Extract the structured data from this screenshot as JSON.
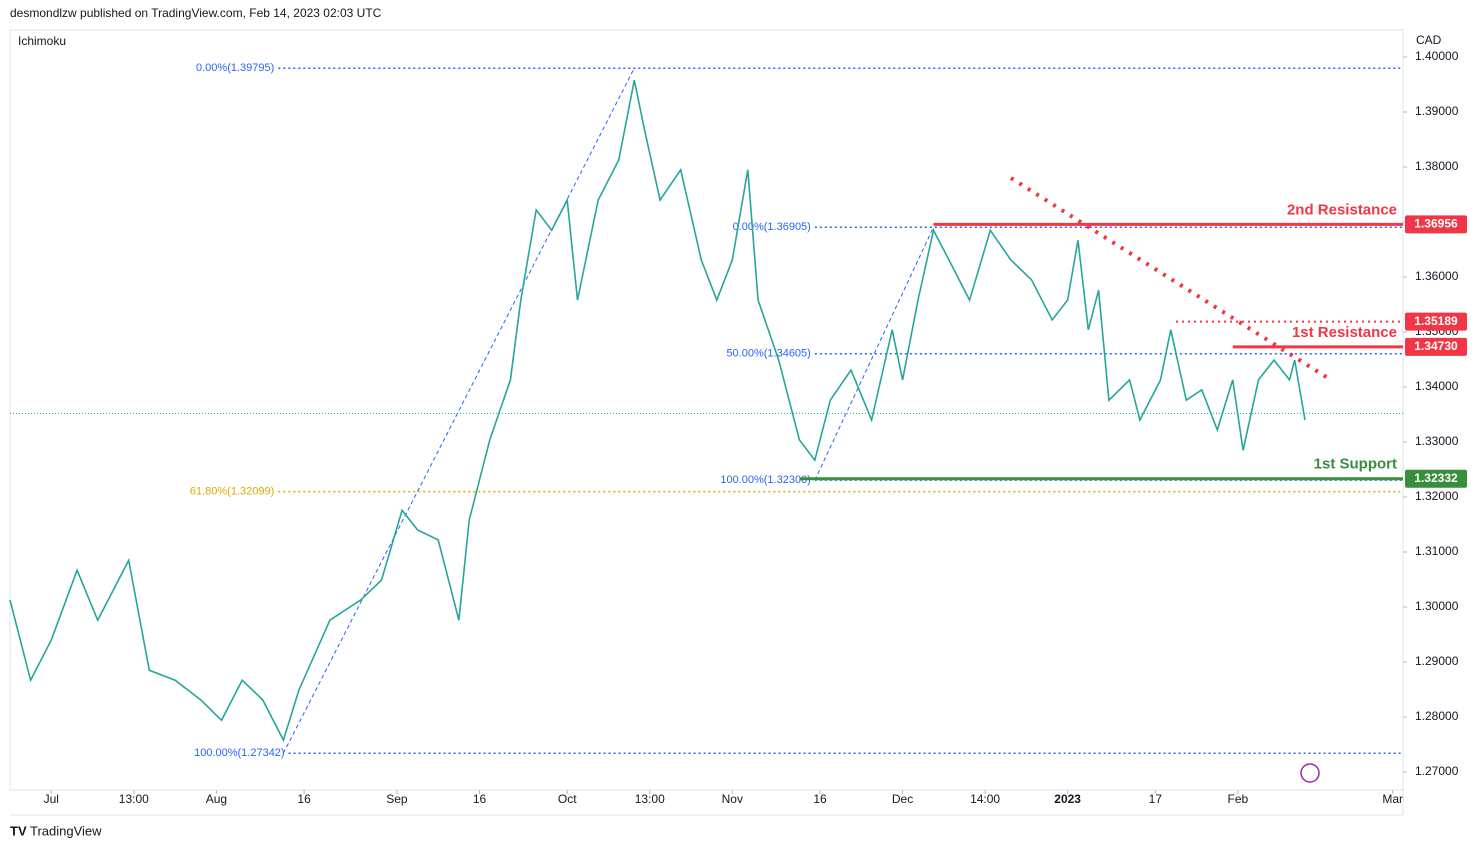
{
  "chart_data": {
    "type": "line",
    "title": "desmondlzw published on TradingView.com, Feb 14, 2023 02:03 UTC",
    "indicator": "Ichimoku",
    "y_axis_label": "CAD",
    "brand": "TradingView",
    "x": [
      0,
      4,
      8,
      13,
      17,
      23,
      27,
      32,
      37,
      41,
      45,
      49,
      53,
      56,
      62,
      68,
      72,
      76,
      79,
      83,
      87,
      89,
      93,
      97,
      99,
      102,
      105,
      108,
      110,
      114,
      118,
      121,
      123,
      126,
      130,
      134,
      137,
      140,
      143,
      145,
      149,
      153,
      156,
      159,
      163,
      167,
      171,
      173,
      176,
      179,
      182,
      186,
      190,
      194,
      198,
      202,
      205,
      207,
      209,
      211,
      213,
      217,
      219,
      223,
      225,
      228,
      231,
      234,
      237,
      239,
      242,
      245,
      248,
      249,
      251
    ],
    "values": [
      1.3013,
      1.2867,
      1.294,
      1.3067,
      1.2976,
      1.3085,
      1.2885,
      1.2867,
      1.2831,
      1.2794,
      1.2867,
      1.2831,
      1.2758,
      1.2849,
      1.2976,
      1.3013,
      1.3049,
      1.3176,
      1.314,
      1.3122,
      1.2976,
      1.3158,
      1.3304,
      1.3413,
      1.3558,
      1.3722,
      1.3685,
      1.374,
      1.3558,
      1.374,
      1.3813,
      1.3958,
      1.3867,
      1.374,
      1.3795,
      1.3631,
      1.3558,
      1.3631,
      1.3795,
      1.3558,
      1.3449,
      1.3304,
      1.3267,
      1.3376,
      1.3431,
      1.334,
      1.3504,
      1.3413,
      1.3558,
      1.3685,
      1.3631,
      1.3558,
      1.3685,
      1.3631,
      1.3595,
      1.3522,
      1.3558,
      1.3667,
      1.3504,
      1.3576,
      1.3376,
      1.3413,
      1.334,
      1.3413,
      1.3504,
      1.3376,
      1.3395,
      1.3322,
      1.3413,
      1.3285,
      1.3413,
      1.3449,
      1.3413,
      1.3449,
      1.334
    ],
    "color": "#26a69a",
    "last_price": 1.3352,
    "xlim": [
      0,
      270
    ],
    "ylim": [
      1.26673,
      1.40491
    ],
    "yticks": [
      {
        "value": 1.27,
        "label": "1.27000"
      },
      {
        "value": 1.28,
        "label": "1.28000"
      },
      {
        "value": 1.29,
        "label": "1.29000"
      },
      {
        "value": 1.3,
        "label": "1.30000"
      },
      {
        "value": 1.31,
        "label": "1.31000"
      },
      {
        "value": 1.32,
        "label": "1.32000"
      },
      {
        "value": 1.33,
        "label": "1.33000"
      },
      {
        "value": 1.34,
        "label": "1.34000"
      },
      {
        "value": 1.35,
        "label": "1.35000"
      },
      {
        "value": 1.36,
        "label": "1.36000"
      },
      {
        "value": 1.37,
        "label": "1.37000"
      },
      {
        "value": 1.38,
        "label": "1.38000"
      },
      {
        "value": 1.39,
        "label": "1.39000"
      },
      {
        "value": 1.4,
        "label": "1.40000"
      }
    ],
    "xticks": [
      {
        "value": 8,
        "label": "Jul"
      },
      {
        "value": 24,
        "label": "13:00"
      },
      {
        "value": 40,
        "label": "Aug"
      },
      {
        "value": 57,
        "label": "16"
      },
      {
        "value": 75,
        "label": "Sep"
      },
      {
        "value": 91,
        "label": "16"
      },
      {
        "value": 108,
        "label": "Oct"
      },
      {
        "value": 124,
        "label": "13:00"
      },
      {
        "value": 140,
        "label": "Nov"
      },
      {
        "value": 157,
        "label": "16"
      },
      {
        "value": 173,
        "label": "Dec"
      },
      {
        "value": 189,
        "label": "14:00"
      },
      {
        "value": 205,
        "label": "2023"
      },
      {
        "value": 222,
        "label": "17"
      },
      {
        "value": 238,
        "label": "Feb"
      },
      {
        "value": 268,
        "label": "Mar"
      }
    ],
    "levels": [
      {
        "name": "2nd Resistance",
        "value": 1.36956,
        "from": 179,
        "color": "#f23645",
        "style": "solid"
      },
      {
        "value": 1.35189,
        "from": 226,
        "color": "#f23645",
        "style": "dotted"
      },
      {
        "name": "1st Resistance",
        "value": 1.3473,
        "value_label": "1.34730",
        "from": 237,
        "color": "#f23645",
        "style": "solid"
      },
      {
        "name": "1st Support",
        "value": 1.32332,
        "from": 153,
        "color": "#388e3c",
        "style": "solid"
      }
    ],
    "fib_levels": [
      {
        "label": "0.00%(1.39795)",
        "value": 1.39795,
        "from": 52,
        "color": "#2962ff"
      },
      {
        "label": "61.80%(1.32099)",
        "value": 1.32099,
        "from": 52,
        "color": "#e0a800"
      },
      {
        "label": "100.00%(1.27342)",
        "value": 1.27342,
        "from": 54,
        "color": "#2962ff"
      },
      {
        "label": "0.00%(1.36905)",
        "value": 1.36905,
        "from": 156,
        "color": "#2962ff"
      },
      {
        "label": "50.00%(1.34605)",
        "value": 1.34605,
        "from": 156,
        "color": "#2962ff"
      },
      {
        "label": "100.00%(1.32306)",
        "value": 1.32306,
        "from": 156,
        "color": "#2962ff"
      }
    ],
    "fib_lines": [
      {
        "x": [
          53,
          121
        ],
        "values": [
          1.27342,
          1.39795
        ]
      },
      {
        "x": [
          156,
          179
        ],
        "values": [
          1.32306,
          1.36905
        ]
      }
    ],
    "trendline": {
      "x": [
        194,
        256
      ],
      "values": [
        1.378,
        1.3413
      ]
    }
  }
}
